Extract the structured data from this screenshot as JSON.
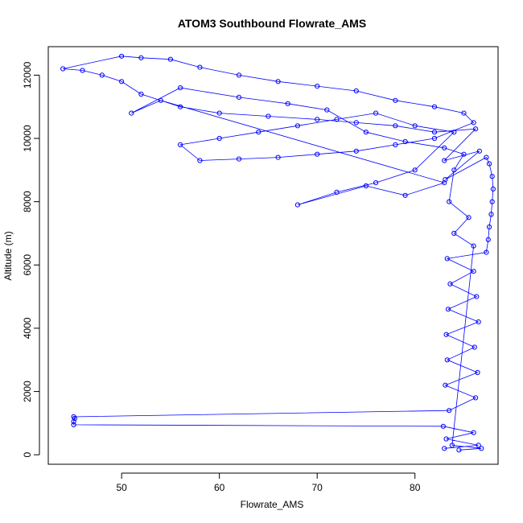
{
  "chart_data": {
    "type": "scatter",
    "title": "ATOM3 Southbound Flowrate_AMS",
    "xlabel": "Flowrate_AMS",
    "ylabel": "Altitude (m)",
    "xlim": [
      42.5,
      88.5
    ],
    "ylim": [
      -300,
      12900
    ],
    "x_ticks": [
      50,
      60,
      70,
      80
    ],
    "y_ticks": [
      0,
      2000,
      4000,
      6000,
      8000,
      10000,
      12000
    ],
    "x_tick_labels": [
      "50",
      "60",
      "70",
      "80"
    ],
    "y_tick_labels": [
      "0",
      "2000",
      "4000",
      "6000",
      "8000",
      "10000",
      "12000"
    ],
    "series_color": "#0000ff",
    "marker": "open-circle",
    "connected": true,
    "series": [
      {
        "name": "Flowrate_AMS",
        "points": [
          [
            83.0,
            200
          ],
          [
            86.5,
            300
          ],
          [
            83.2,
            500
          ],
          [
            86.0,
            700
          ],
          [
            82.9,
            900
          ],
          [
            45.1,
            950
          ],
          [
            45.1,
            1050
          ],
          [
            45.2,
            1150
          ],
          [
            45.1,
            1200
          ],
          [
            83.5,
            1400
          ],
          [
            86.2,
            1800
          ],
          [
            83.1,
            2200
          ],
          [
            86.4,
            2600
          ],
          [
            83.3,
            3000
          ],
          [
            86.1,
            3400
          ],
          [
            83.2,
            3800
          ],
          [
            86.5,
            4200
          ],
          [
            83.4,
            4600
          ],
          [
            86.3,
            5000
          ],
          [
            83.6,
            5400
          ],
          [
            86.0,
            5800
          ],
          [
            83.3,
            6200
          ],
          [
            87.3,
            6400
          ],
          [
            87.5,
            6800
          ],
          [
            87.6,
            7200
          ],
          [
            87.8,
            7600
          ],
          [
            87.9,
            8000
          ],
          [
            88.0,
            8400
          ],
          [
            87.9,
            8800
          ],
          [
            87.6,
            9200
          ],
          [
            87.3,
            9400
          ],
          [
            83.1,
            8700
          ],
          [
            86.6,
            9600
          ],
          [
            83.0,
            9300
          ],
          [
            86.2,
            10300
          ],
          [
            82.0,
            10200
          ],
          [
            78.0,
            10400
          ],
          [
            74.0,
            10500
          ],
          [
            70.0,
            10600
          ],
          [
            65.0,
            10700
          ],
          [
            60.0,
            10800
          ],
          [
            56.0,
            11000
          ],
          [
            52.0,
            11400
          ],
          [
            50.0,
            11800
          ],
          [
            48.0,
            12000
          ],
          [
            46.0,
            12150
          ],
          [
            44.0,
            12200
          ],
          [
            50.0,
            12600
          ],
          [
            52.0,
            12550
          ],
          [
            55.0,
            12500
          ],
          [
            58.0,
            12250
          ],
          [
            62.0,
            12000
          ],
          [
            66.0,
            11800
          ],
          [
            70.0,
            11650
          ],
          [
            74.0,
            11500
          ],
          [
            78.0,
            11200
          ],
          [
            82.0,
            11000
          ],
          [
            85.0,
            10800
          ],
          [
            86.0,
            10500
          ],
          [
            82.0,
            10000
          ],
          [
            78.0,
            9800
          ],
          [
            74.0,
            9600
          ],
          [
            70.0,
            9500
          ],
          [
            66.0,
            9400
          ],
          [
            62.0,
            9350
          ],
          [
            58.0,
            9300
          ],
          [
            56.0,
            9800
          ],
          [
            60.0,
            10000
          ],
          [
            64.0,
            10200
          ],
          [
            68.0,
            10400
          ],
          [
            72.0,
            10600
          ],
          [
            76.0,
            10800
          ],
          [
            80.0,
            10400
          ],
          [
            84.0,
            10200
          ],
          [
            80.0,
            9000
          ],
          [
            76.0,
            8600
          ],
          [
            72.0,
            8300
          ],
          [
            68.0,
            7900
          ],
          [
            75.0,
            8500
          ],
          [
            79.0,
            8200
          ],
          [
            83.0,
            8600
          ],
          [
            54.0,
            11200
          ],
          [
            51.0,
            10800
          ],
          [
            56.0,
            11600
          ],
          [
            62.0,
            11300
          ],
          [
            67.0,
            11100
          ],
          [
            71.0,
            10900
          ],
          [
            75.0,
            10200
          ],
          [
            79.0,
            9900
          ],
          [
            83.0,
            9700
          ],
          [
            85.0,
            9500
          ],
          [
            84.0,
            9000
          ],
          [
            83.5,
            8000
          ],
          [
            85.5,
            7500
          ],
          [
            84.0,
            7000
          ],
          [
            86.0,
            6600
          ],
          [
            83.8,
            300
          ],
          [
            86.8,
            200
          ],
          [
            84.5,
            150
          ]
        ]
      }
    ]
  }
}
